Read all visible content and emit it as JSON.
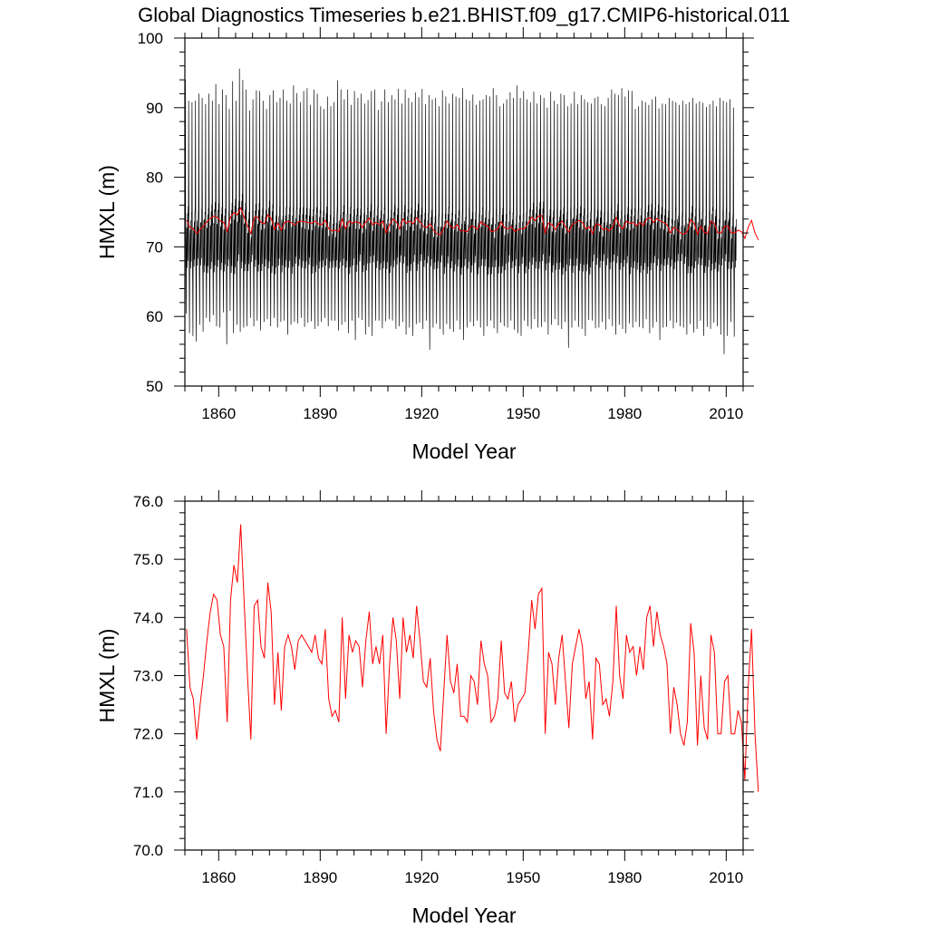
{
  "figure": {
    "title": "Global Diagnostics Timeseries b.e21.BHIST.f09_g17.CMIP6-historical.011"
  },
  "chart_data": [
    {
      "type": "line",
      "xlabel": "Model Year",
      "ylabel": "HMXL (m)",
      "xlim": [
        1850,
        2015
      ],
      "ylim": [
        50,
        100
      ],
      "xticks": [
        "1860",
        "1890",
        "1920",
        "1950",
        "1980",
        "2010"
      ],
      "yticks": [
        "50",
        "60",
        "70",
        "80",
        "90",
        "100"
      ],
      "grid": false,
      "series": [
        {
          "kind": "monthly",
          "color": "#000000",
          "x_start": 1850,
          "x_end": 2015,
          "annual_peak": [
            94.0,
            91.0,
            90.8,
            91.0,
            92.0,
            91.4,
            90.5,
            92.0,
            91.0,
            93.4,
            90.5,
            92.6,
            91.8,
            89.8,
            93.8,
            91.0,
            95.6,
            94.0,
            92.6,
            89.6,
            91.2,
            92.5,
            92.4,
            91.0,
            89.8,
            91.8,
            92.5,
            90.8,
            91.4,
            92.6,
            91.0,
            90.6,
            93.2,
            92.1,
            90.8,
            92.4,
            92.8,
            90.4,
            92.6,
            92.0,
            90.2,
            89.8,
            91.6,
            90.2,
            90.8,
            93.9,
            92.6,
            91.2,
            92.6,
            90.4,
            92.4,
            91.4,
            92.0,
            90.6,
            91.1,
            92.4,
            92.6,
            89.7,
            90.9,
            92.6,
            90.8,
            91.8,
            91.2,
            92.7,
            90.6,
            92.6,
            91.4,
            90.8,
            92.2,
            91.5,
            92.7,
            90.5,
            91.8,
            91.2,
            91.4,
            90.2,
            92.5,
            91.6,
            90.6,
            92.0,
            91.6,
            91.4,
            92.8,
            91.2,
            91.0,
            91.9,
            90.4,
            91.0,
            91.2,
            91.8,
            91.6,
            92.8,
            91.8,
            90.2,
            90.6,
            91.2,
            92.2,
            91.4,
            93.2,
            91.4,
            92.4,
            91.2,
            90.8,
            92.3,
            90.6,
            91.8,
            91.4,
            90.0,
            92.3,
            91.0,
            90.5,
            92.0,
            91.8,
            90.2,
            90.6,
            92.3,
            90.5,
            91.8,
            91.2,
            90.8,
            90.6,
            91.4,
            91.6,
            90.5,
            90.2,
            91.4,
            92.6,
            92.0,
            91.8,
            92.8,
            91.6,
            92.5,
            92.4,
            89.8,
            90.2,
            91.0,
            90.8,
            90.4,
            91.2,
            91.6,
            89.9,
            90.6,
            90.5,
            91.4,
            91.0,
            90.8,
            90.4,
            91.0,
            90.5,
            90.8,
            91.4,
            90.6,
            90.9,
            90.7,
            90.1,
            90.5,
            91.0,
            90.2,
            91.4,
            91.0,
            90.8,
            91.2,
            90.0
          ],
          "annual_trough": [
            60.4,
            57.6,
            57.2,
            56.4,
            58.8,
            57.8,
            59.8,
            59.2,
            60.2,
            58.6,
            58.4,
            60.6,
            56.0,
            60.8,
            57.6,
            58.8,
            57.8,
            58.4,
            58.6,
            59.8,
            58.6,
            59.4,
            58.0,
            59.2,
            59.6,
            58.6,
            59.8,
            58.4,
            59.2,
            59.4,
            57.4,
            58.8,
            59.2,
            59.0,
            59.8,
            58.5,
            59.1,
            59.3,
            58.2,
            58.6,
            59.2,
            59.8,
            58.6,
            59.4,
            59.4,
            58.0,
            58.8,
            59.2,
            57.6,
            59.4,
            56.6,
            59.8,
            59.5,
            57.4,
            58.5,
            57.2,
            59.4,
            59.4,
            58.3,
            59.3,
            59.6,
            59.4,
            58.2,
            58.6,
            59.2,
            57.4,
            58.4,
            57.2,
            58.9,
            59.1,
            58.2,
            59.4,
            55.2,
            58.4,
            59.0,
            58.2,
            57.4,
            58.9,
            58.2,
            57.8,
            59.4,
            58.1,
            56.6,
            58.4,
            59.2,
            58.6,
            59.4,
            58.4,
            57.2,
            58.6,
            59.4,
            58.3,
            57.6,
            59.1,
            58.6,
            58.4,
            59.4,
            58.1,
            57.6,
            57.2,
            59.4,
            58.6,
            58.2,
            59.6,
            58.4,
            58.5,
            59.2,
            57.4,
            58.8,
            59.6,
            58.7,
            58.2,
            59.2,
            55.5,
            58.4,
            59.4,
            58.5,
            58.2,
            57.2,
            59.5,
            59.4,
            58.3,
            58.4,
            59.2,
            58.1,
            59.6,
            58.6,
            57.4,
            58.8,
            58.2,
            57.6,
            59.0,
            58.4,
            59.2,
            58.5,
            58.3,
            59.6,
            57.6,
            58.4,
            59.2,
            56.6,
            58.4,
            58.5,
            59.4,
            58.3,
            59.1,
            58.6,
            58.4,
            57.4,
            58.9,
            57.7,
            58.2,
            59.4,
            57.2,
            58.5,
            58.2,
            59.1,
            58.6,
            57.4,
            54.6,
            57.2,
            59.2,
            57.1,
            58.8,
            58.0
          ],
          "mid_band": [
            66.0,
            76.0
          ]
        },
        {
          "kind": "annual",
          "color": "#ff0000",
          "ref": "annual_mean"
        }
      ]
    },
    {
      "type": "line",
      "xlabel": "Model Year",
      "ylabel": "HMXL (m)",
      "xlim": [
        1850,
        2015
      ],
      "ylim": [
        70.0,
        76.0
      ],
      "xticks": [
        "1860",
        "1890",
        "1920",
        "1950",
        "1980",
        "2010"
      ],
      "yticks": [
        "70.0",
        "71.0",
        "72.0",
        "73.0",
        "74.0",
        "75.0",
        "76.0"
      ],
      "grid": false,
      "series": [
        {
          "kind": "annual",
          "color": "#ff0000",
          "x_start": 1850.5,
          "values": [
            73.8,
            72.8,
            72.6,
            71.9,
            72.5,
            73.0,
            73.6,
            74.1,
            74.4,
            74.3,
            73.7,
            73.5,
            72.2,
            74.3,
            74.9,
            74.6,
            75.6,
            74.3,
            73.0,
            71.9,
            74.2,
            74.3,
            73.5,
            73.3,
            74.6,
            74.1,
            72.5,
            73.4,
            72.4,
            73.5,
            73.7,
            73.5,
            73.1,
            73.6,
            73.7,
            73.6,
            73.5,
            73.4,
            73.7,
            73.3,
            73.2,
            73.8,
            72.6,
            72.3,
            72.4,
            72.2,
            74.0,
            72.6,
            73.7,
            73.4,
            73.6,
            73.5,
            72.8,
            73.6,
            74.1,
            73.2,
            73.5,
            73.2,
            73.7,
            72.0,
            73.2,
            74.0,
            73.6,
            72.6,
            74.0,
            73.4,
            73.7,
            73.3,
            74.2,
            73.6,
            72.9,
            72.8,
            73.3,
            72.4,
            71.9,
            71.7,
            72.7,
            73.7,
            72.9,
            72.7,
            73.2,
            72.3,
            72.3,
            72.2,
            73.0,
            72.9,
            72.5,
            73.6,
            73.2,
            73.0,
            72.2,
            72.3,
            72.6,
            73.6,
            72.7,
            72.6,
            72.9,
            72.2,
            72.5,
            72.6,
            72.7,
            73.4,
            74.3,
            73.8,
            74.4,
            74.5,
            72.0,
            73.4,
            73.2,
            72.5,
            73.3,
            73.7,
            72.9,
            72.1,
            73.2,
            73.5,
            73.8,
            73.5,
            72.6,
            72.9,
            71.9,
            73.3,
            73.2,
            72.5,
            72.6,
            72.3,
            72.9,
            74.2,
            73.0,
            72.6,
            73.7,
            73.4,
            73.5,
            73.0,
            73.5,
            73.1,
            74.0,
            74.2,
            73.5,
            74.1,
            73.7,
            73.5,
            73.2,
            72.0,
            72.8,
            72.5,
            72.0,
            71.8,
            72.2,
            73.9,
            73.4,
            71.8,
            73.0,
            72.1,
            71.9,
            73.7,
            73.4,
            72.0,
            72.0,
            72.9,
            73.0,
            72.0,
            72.0,
            72.4,
            72.2,
            71.2,
            72.8,
            73.8,
            72.0,
            71.0
          ]
        }
      ]
    }
  ]
}
